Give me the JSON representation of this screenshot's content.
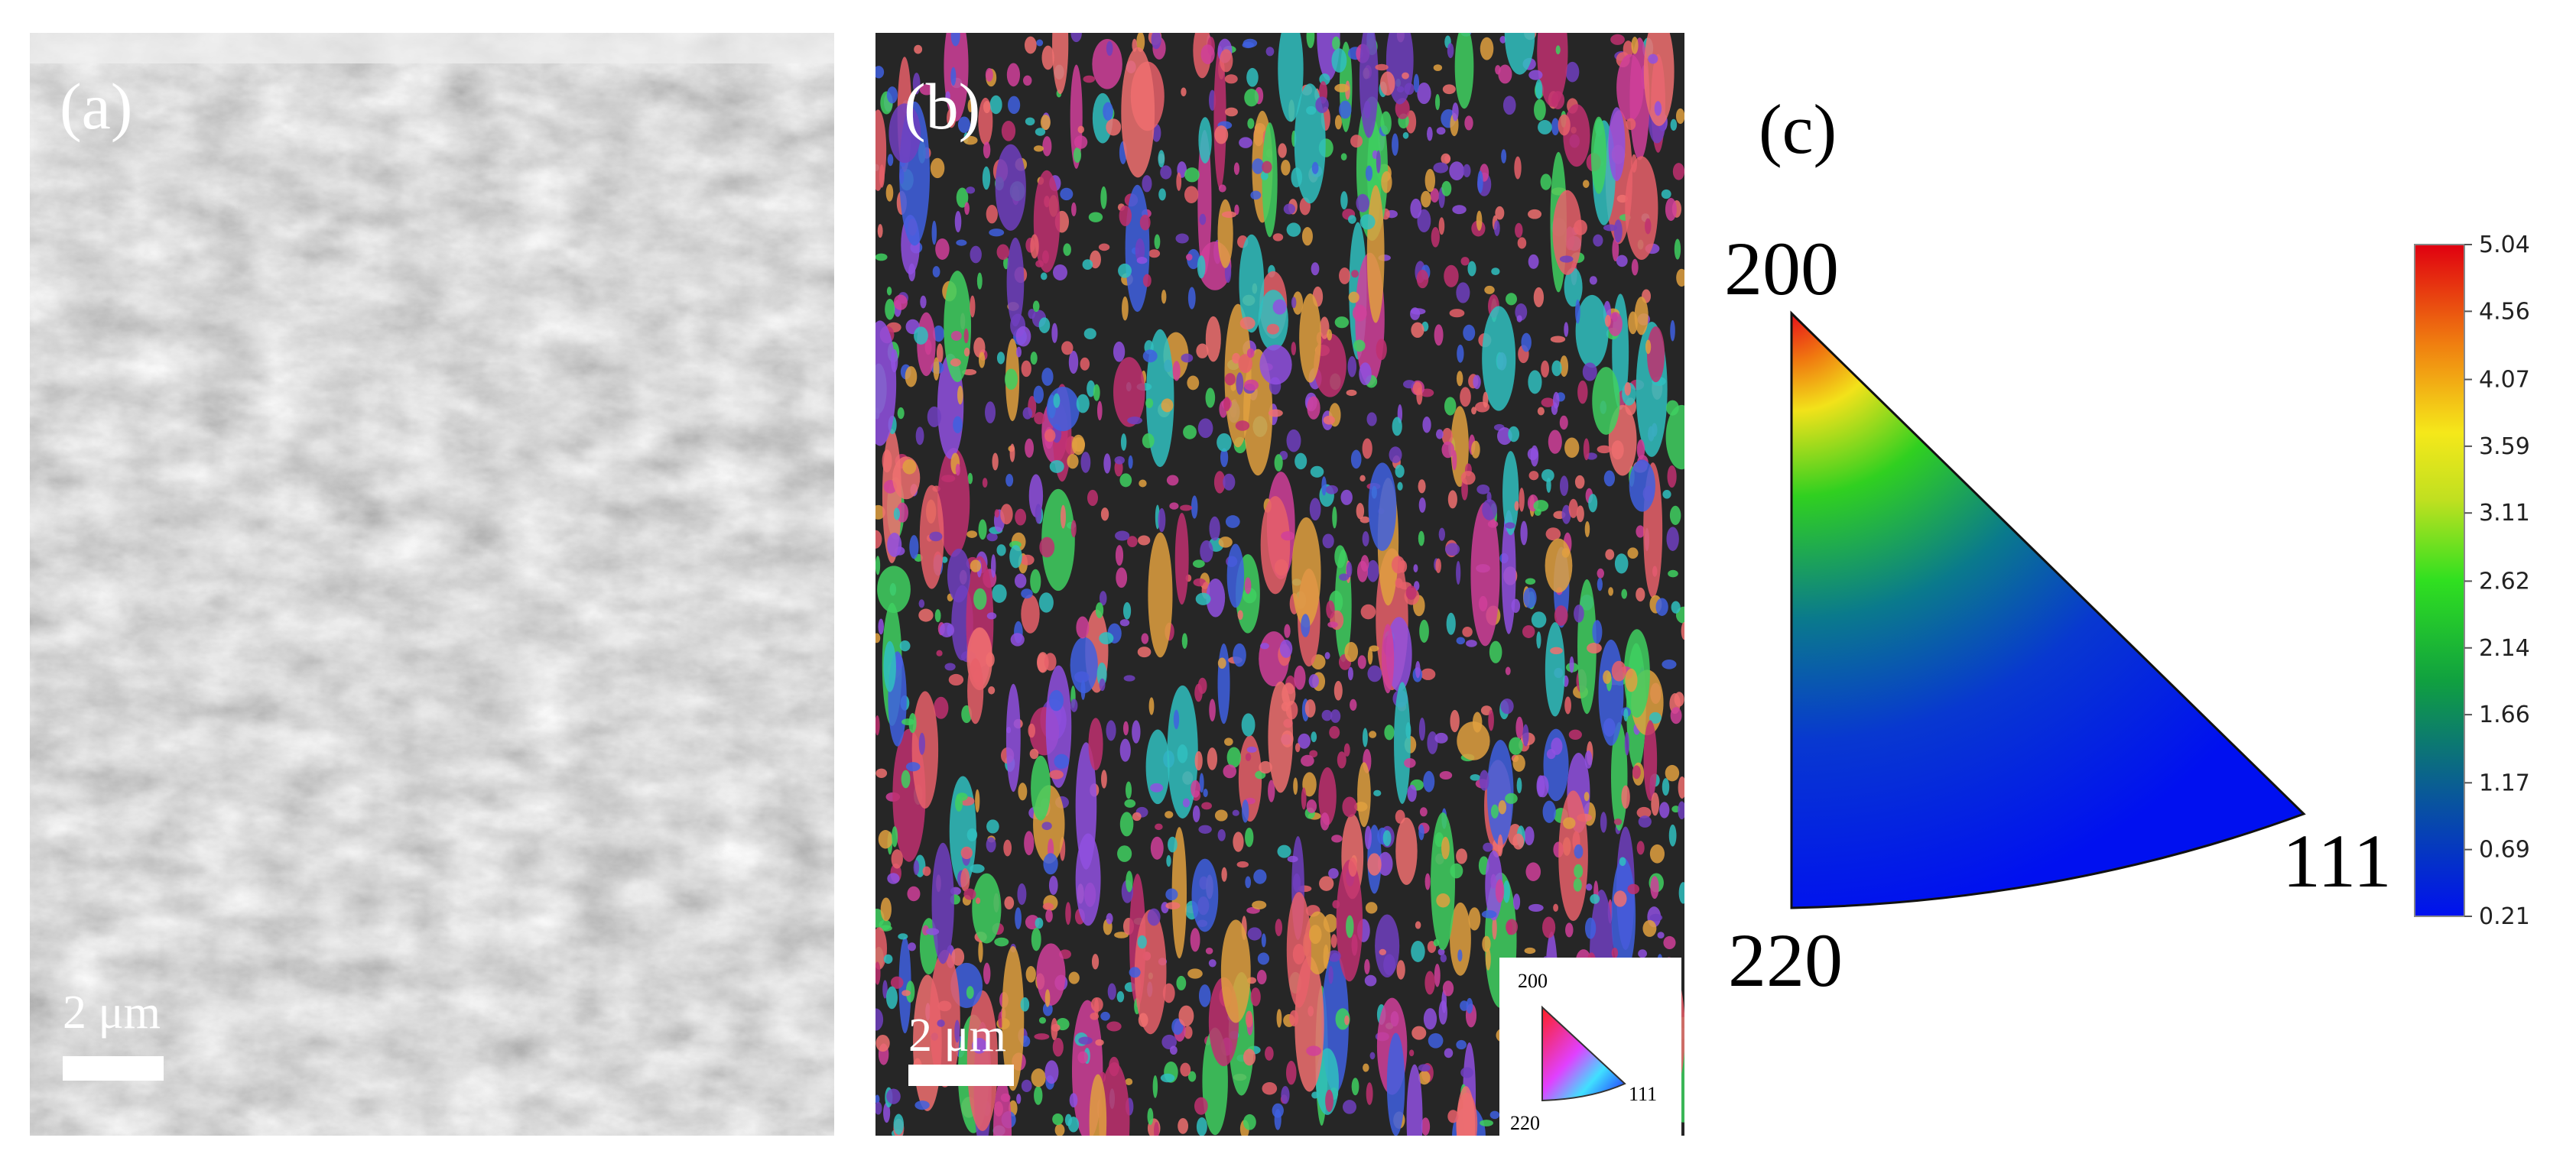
{
  "panels": {
    "a": {
      "label": "(a)",
      "scale_bar": "2 μm"
    },
    "b": {
      "label": "(b)",
      "scale_bar": "2 μm",
      "legend": {
        "top": "200",
        "bottom_left": "220",
        "right": "111"
      }
    },
    "c": {
      "label": "(c)",
      "pole_figure": {
        "top": "200",
        "bottom_left": "220",
        "right": "111"
      },
      "colorbar_ticks": [
        5.04,
        4.56,
        4.07,
        3.59,
        3.11,
        2.62,
        2.14,
        1.66,
        1.17,
        0.69,
        0.21
      ]
    }
  }
}
